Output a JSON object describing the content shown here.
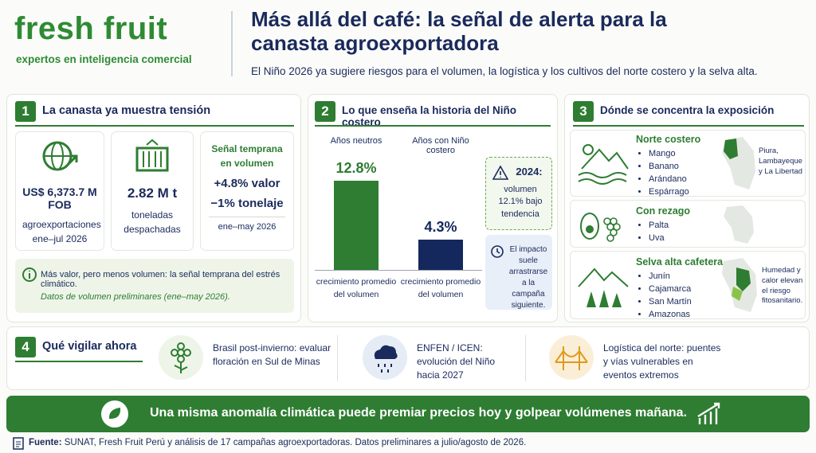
{
  "header": {
    "brand": "fresh fruit",
    "tagline": "expertos en inteligencia comercial",
    "title": "Más allá del café: la señal de alerta para la canasta agroexportadora",
    "subtitle": "El Niño 2026 ya sugiere riesgos para el volumen, la logística y los cultivos del norte costero y la selva alta."
  },
  "section1": {
    "number": "1",
    "title": "La canasta ya muestra tensión",
    "stats": [
      {
        "value": "US$ 6,373.7 M FOB",
        "label": "agroexportaciones ene–jul 2026"
      },
      {
        "value": "2.82 M t",
        "label": "toneladas despachadas"
      }
    ],
    "signal": {
      "title": "Señal temprana en volumen",
      "lines": [
        "+4.8% valor",
        "−1% tonelaje"
      ],
      "period": "ene–may 2026"
    },
    "note": "Más valor, pero menos volumen: la señal temprana del estrés climático.",
    "note_detail": "Datos de volumen preliminares (ene–may 2026)."
  },
  "section2": {
    "number": "2",
    "title": "Lo que enseña la historia del Niño costero",
    "bars": [
      {
        "label": "Años neutros",
        "value": 12.8,
        "value_label": "12.8%",
        "caption": "crecimiento promedio del volumen"
      },
      {
        "label": "Años con Niño costero",
        "value": 4.3,
        "value_label": "4.3%",
        "caption": "crecimiento promedio del volumen"
      }
    ],
    "callout_title": "2024:",
    "callout_text": "volumen 12.1% bajo tendencia",
    "callout2": "El impacto suele arrastrarse a la campaña siguiente."
  },
  "section3": {
    "number": "3",
    "title": "Dónde se concentra la exposición",
    "regions": [
      {
        "name": "Norte costero",
        "crops": [
          "Mango",
          "Banano",
          "Arándano",
          "Espárrago"
        ],
        "map_label": "Piura, Lambayeque y La Libertad"
      },
      {
        "name": "Con rezago",
        "crops": [
          "Palta",
          "Uva"
        ]
      },
      {
        "name": "Selva alta cafetera",
        "crops": [
          "Junín",
          "Cajamarca",
          "San Martín",
          "Amazonas"
        ],
        "map_label": "Humedad y calor elevan el riesgo fitosanitario."
      }
    ]
  },
  "section4": {
    "number": "4",
    "title": "Qué vigilar ahora",
    "items": [
      "Brasil post-invierno: evaluar floración en Sul de Minas",
      "ENFEN / ICEN: evolución del Niño hacia 2027",
      "Logística del norte: puentes y vías vulnerables en eventos extremos"
    ]
  },
  "banner": "Una misma anomalía climática puede premiar precios hoy y golpear volúmenes mañana.",
  "footer": {
    "label": "Fuente:",
    "text": "SUNAT, Fresh Fruit Perú y análisis de 17 campañas agroexportadoras. Datos preliminares a julio/agosto de 2026."
  }
}
